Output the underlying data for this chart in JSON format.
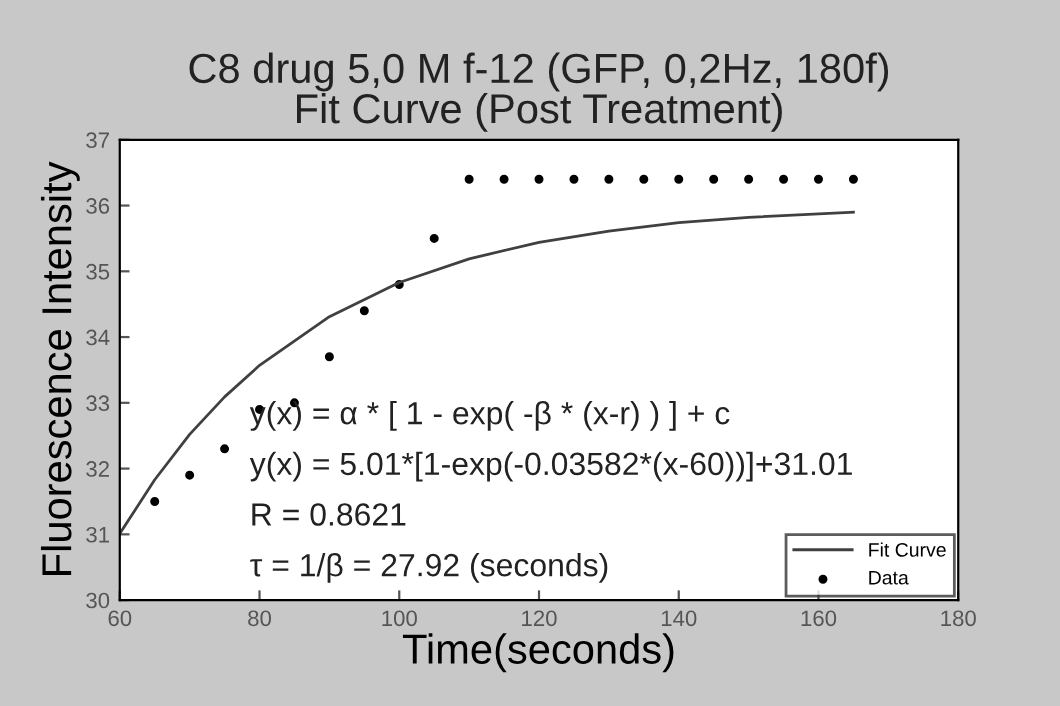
{
  "chart_data": {
    "type": "scatter",
    "title": "C8 drug 5,0 M f-12 (GFP, 0,2Hz, 180f)\nFit Curve (Post Treatment)",
    "xlabel": "Time(seconds)",
    "ylabel": "Fluorescence Intensity",
    "series": [
      {
        "name": "Fit Curve",
        "type": "line",
        "color": "#404040",
        "marker": "none",
        "line_style": "solid",
        "x": [
          60,
          65,
          70,
          75,
          80,
          90,
          100,
          110,
          120,
          130,
          140,
          150,
          165
        ],
        "values": [
          31.01,
          31.83,
          32.52,
          33.09,
          33.57,
          34.31,
          34.83,
          35.19,
          35.44,
          35.61,
          35.74,
          35.82,
          35.9
        ]
      },
      {
        "name": "Data",
        "color": "#000000",
        "marker": "circle",
        "x": [
          65,
          70,
          75,
          80,
          85,
          90,
          95,
          100,
          105,
          110,
          115,
          120,
          125,
          130,
          135,
          140,
          145,
          150,
          155,
          160,
          165
        ],
        "values": [
          31.5,
          31.9,
          32.3,
          32.9,
          33.0,
          33.7,
          34.4,
          34.8,
          35.5,
          36.4,
          36.4,
          36.4,
          36.4,
          36.4,
          36.4,
          36.4,
          36.4,
          36.4,
          36.4,
          36.4,
          36.4
        ]
      }
    ],
    "annotations": [
      "y(x) = α * [ 1 - exp( -β * (x-r) ) ] + c",
      "y(x) = 5.01*[1-exp(-0.03582*(x-60))]+31.01",
      "R = 0.8621",
      "τ = 1/β = 27.92 (seconds)"
    ],
    "xlim": [
      60,
      180
    ],
    "xticks": [
      60,
      80,
      100,
      120,
      140,
      160,
      180
    ],
    "ylim": [
      30,
      37
    ],
    "yticks": [
      30,
      31,
      32,
      33,
      34,
      35,
      36,
      37
    ],
    "grid": false,
    "legend": "bottom right"
  }
}
